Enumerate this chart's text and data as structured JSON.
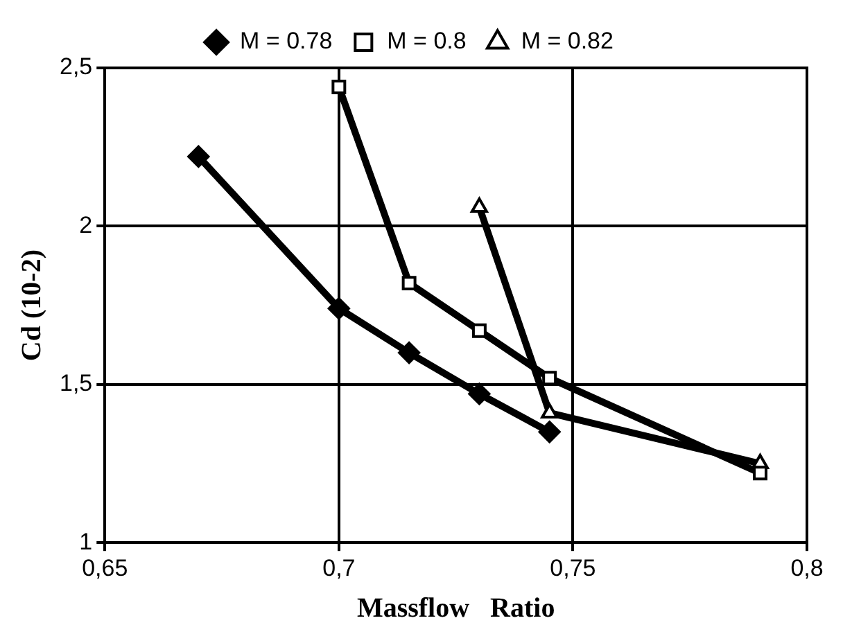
{
  "chart_data": {
    "type": "line",
    "xlabel": "Massflow   Ratio",
    "ylabel": "Cd (10-2)",
    "xlim": [
      0.65,
      0.8
    ],
    "xticks": [
      {
        "value": 0.65,
        "label": "0,65"
      },
      {
        "value": 0.7,
        "label": "0,7"
      },
      {
        "value": 0.75,
        "label": "0,75"
      },
      {
        "value": 0.8,
        "label": "0,8"
      }
    ],
    "ylim": [
      1,
      2.5
    ],
    "yticks": [
      {
        "value": 1,
        "label": "1"
      },
      {
        "value": 1.5,
        "label": "1,5"
      },
      {
        "value": 2,
        "label": "2"
      },
      {
        "value": 2.5,
        "label": "2,5"
      }
    ],
    "grid": true,
    "legend": "top",
    "line_style": "solid",
    "series": [
      {
        "name": "M = 0.78",
        "color": "#000000",
        "marker": "diamond",
        "x": [
          0.67,
          0.7,
          0.715,
          0.73,
          0.745
        ],
        "values": [
          2.22,
          1.74,
          1.6,
          1.47,
          1.35
        ]
      },
      {
        "name": "M = 0.8",
        "color": "#000000",
        "marker": "square",
        "x": [
          0.7,
          0.715,
          0.73,
          0.745,
          0.79
        ],
        "values": [
          2.44,
          1.82,
          1.67,
          1.52,
          1.22
        ]
      },
      {
        "name": "M = 0.82",
        "color": "#000000",
        "marker": "triangle",
        "x": [
          0.73,
          0.745,
          0.79
        ],
        "values": [
          2.06,
          1.41,
          1.25
        ]
      }
    ]
  }
}
